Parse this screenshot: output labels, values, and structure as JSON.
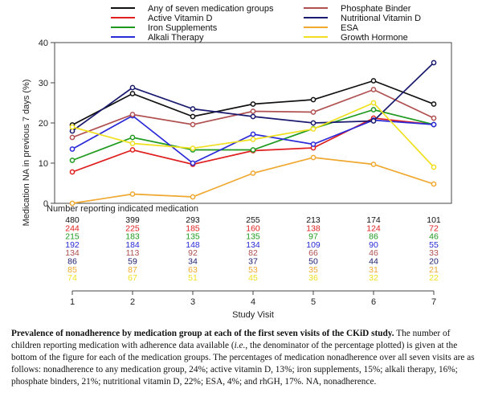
{
  "chart_data": {
    "type": "line",
    "ylabel": "Medication NA in previous 7 days (%)",
    "xlabel": "Study Visit",
    "x": [
      1,
      2,
      3,
      4,
      5,
      6,
      7
    ],
    "ylim": [
      0,
      40
    ],
    "yticks": [
      0,
      10,
      20,
      30,
      40
    ],
    "grid": false,
    "legend_position": "top",
    "series": [
      {
        "name": "Any of seven medication groups",
        "color": "#111111",
        "values": [
          19.5,
          27.3,
          21.6,
          24.7,
          25.8,
          30.5,
          24.7
        ]
      },
      {
        "name": "Active Vitamin D",
        "color": "#e02020",
        "values": [
          7.8,
          13.3,
          9.7,
          13.1,
          13.8,
          21.2,
          19.6
        ]
      },
      {
        "name": "Iron Supplements",
        "color": "#1f9a1f",
        "values": [
          10.7,
          16.4,
          13.3,
          13.3,
          18.6,
          23.3,
          19.6
        ]
      },
      {
        "name": "Alkali Therapy",
        "color": "#2a2ad8",
        "values": [
          13.5,
          21.8,
          10.0,
          17.2,
          14.7,
          20.7,
          19.6
        ]
      },
      {
        "name": "Phosphate Binder",
        "color": "#b05050",
        "values": [
          16.4,
          22.1,
          19.6,
          22.9,
          22.7,
          28.3,
          21.2
        ]
      },
      {
        "name": "Nutritional Vitamin D",
        "color": "#1a1a6e",
        "values": [
          18.0,
          28.8,
          23.5,
          21.6,
          20.0,
          20.5,
          35.0
        ]
      },
      {
        "name": "ESA",
        "color": "#f0a830",
        "values": [
          0.0,
          2.3,
          1.6,
          7.5,
          11.4,
          9.7,
          4.8
        ]
      },
      {
        "name": "Growth Hormone",
        "color": "#f0e020",
        "values": [
          19.0,
          14.9,
          13.7,
          15.9,
          18.5,
          25.0,
          9.0
        ]
      }
    ],
    "table_title": "Number reporting indicated medication",
    "counts": [
      {
        "color": "#111111",
        "values": [
          "480",
          "399",
          "293",
          "255",
          "213",
          "174",
          "101"
        ]
      },
      {
        "color": "#e02020",
        "values": [
          "244",
          "225",
          "185",
          "160",
          "138",
          "124",
          "72"
        ]
      },
      {
        "color": "#1f9a1f",
        "values": [
          "215",
          "183",
          "135",
          "135",
          "97",
          "86",
          "46"
        ]
      },
      {
        "color": "#2a2ad8",
        "values": [
          "192",
          "184",
          "148",
          "134",
          "109",
          "90",
          "55"
        ]
      },
      {
        "color": "#b05050",
        "values": [
          "134",
          "113",
          "92",
          "82",
          "66",
          "46",
          "33"
        ]
      },
      {
        "color": "#1a1a6e",
        "values": [
          "86",
          "59",
          "34",
          "37",
          "50",
          "44",
          "20"
        ]
      },
      {
        "color": "#f0a830",
        "values": [
          "85",
          "87",
          "63",
          "53",
          "35",
          "31",
          "21"
        ]
      },
      {
        "color": "#f0e020",
        "values": [
          "74",
          "67",
          "51",
          "45",
          "36",
          "32",
          "22"
        ]
      }
    ]
  },
  "caption": {
    "bold": "Prevalence of nonadherence by medication group at each of the first seven visits of the CKiD study.",
    "text1": " The number of children reporting medication with adherence data available (",
    "ie": "i.e.",
    "text2": ", the denominator of the percentage plotted) is given at the bottom of the figure for each of the medication groups. The percentages of medication nonadherence over all seven visits are as follows: nonadherence to any medication group, 24%; active vitamin D, 13%; iron supplements, 15%; alkali therapy, 16%; phosphate binders, 21%; nutritional vitamin D, 22%; ESA, 4%; and rhGH, 17%. NA, nonadherence."
  }
}
